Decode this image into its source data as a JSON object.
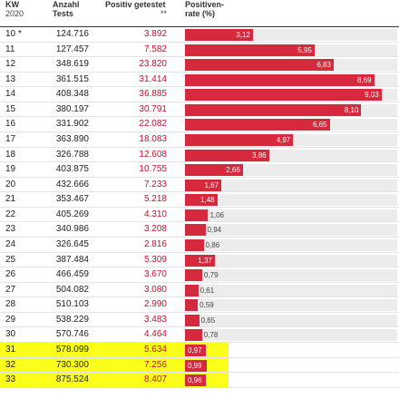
{
  "headers": {
    "kw": "KW",
    "kw_sub": "2020",
    "tests": "Anzahl",
    "tests_sub": "Tests",
    "positive": "Positiv getestet",
    "positive_sub": "**",
    "rate": "Positiven-",
    "rate_sub": "rate (%)"
  },
  "colors": {
    "bar": "#d6293d",
    "positive_text": "#c8102e",
    "highlight": "#fbff1a",
    "track": "#ececec"
  },
  "highlighted_weeks": [
    "31",
    "32",
    "33"
  ],
  "chart_data": {
    "type": "table",
    "columns": [
      "KW 2020",
      "Anzahl Tests",
      "Positiv getestet **",
      "Positivenrate (%)"
    ],
    "xlim": [
      0,
      9.75
    ],
    "rows": [
      {
        "kw": "10 *",
        "tests": "124.716",
        "positive": "3.892",
        "rate": 3.12,
        "rate_label": "3,12"
      },
      {
        "kw": "11",
        "tests": "127.457",
        "positive": "7.582",
        "rate": 5.95,
        "rate_label": "5,95"
      },
      {
        "kw": "12",
        "tests": "348.619",
        "positive": "23.820",
        "rate": 6.83,
        "rate_label": "6,83"
      },
      {
        "kw": "13",
        "tests": "361.515",
        "positive": "31.414",
        "rate": 8.69,
        "rate_label": "8,69"
      },
      {
        "kw": "14",
        "tests": "408.348",
        "positive": "36.885",
        "rate": 9.03,
        "rate_label": "9,03"
      },
      {
        "kw": "15",
        "tests": "380.197",
        "positive": "30.791",
        "rate": 8.1,
        "rate_label": "8,10"
      },
      {
        "kw": "16",
        "tests": "331.902",
        "positive": "22.082",
        "rate": 6.65,
        "rate_label": "6,65"
      },
      {
        "kw": "17",
        "tests": "363.890",
        "positive": "18.083",
        "rate": 4.97,
        "rate_label": "4,97"
      },
      {
        "kw": "18",
        "tests": "326.788",
        "positive": "12.608",
        "rate": 3.86,
        "rate_label": "3,86"
      },
      {
        "kw": "19",
        "tests": "403.875",
        "positive": "10.755",
        "rate": 2.66,
        "rate_label": "2,66"
      },
      {
        "kw": "20",
        "tests": "432.666",
        "positive": "7.233",
        "rate": 1.67,
        "rate_label": "1,67"
      },
      {
        "kw": "21",
        "tests": "353.467",
        "positive": "5.218",
        "rate": 1.48,
        "rate_label": "1,48"
      },
      {
        "kw": "22",
        "tests": "405.269",
        "positive": "4.310",
        "rate": 1.06,
        "rate_label": "1,06"
      },
      {
        "kw": "23",
        "tests": "340.986",
        "positive": "3.208",
        "rate": 0.94,
        "rate_label": "0,94"
      },
      {
        "kw": "24",
        "tests": "326.645",
        "positive": "2.816",
        "rate": 0.86,
        "rate_label": "0,86"
      },
      {
        "kw": "25",
        "tests": "387.484",
        "positive": "5.309",
        "rate": 1.37,
        "rate_label": "1,37"
      },
      {
        "kw": "26",
        "tests": "466.459",
        "positive": "3.670",
        "rate": 0.79,
        "rate_label": "0,79"
      },
      {
        "kw": "27",
        "tests": "504.082",
        "positive": "3.080",
        "rate": 0.61,
        "rate_label": "0,61"
      },
      {
        "kw": "28",
        "tests": "510.103",
        "positive": "2.990",
        "rate": 0.59,
        "rate_label": "0,59"
      },
      {
        "kw": "29",
        "tests": "538.229",
        "positive": "3.483",
        "rate": 0.65,
        "rate_label": "0,65"
      },
      {
        "kw": "30",
        "tests": "570.746",
        "positive": "4.464",
        "rate": 0.78,
        "rate_label": "0,78"
      },
      {
        "kw": "31",
        "tests": "578.099",
        "positive": "5.634",
        "rate": 0.97,
        "rate_label": "0,97"
      },
      {
        "kw": "32",
        "tests": "730.300",
        "positive": "7.256",
        "rate": 0.99,
        "rate_label": "0,99"
      },
      {
        "kw": "33",
        "tests": "875.524",
        "positive": "8.407",
        "rate": 0.96,
        "rate_label": "0,96"
      }
    ]
  }
}
